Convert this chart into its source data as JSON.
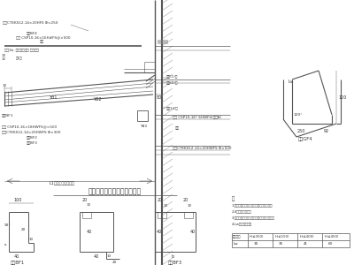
{
  "bg_color": "#f0f0f0",
  "lc": "#555555",
  "tc": "#333333",
  "title": "雨蕨法水收边板施工节点详图",
  "notes": [
    "1.屏蔻流水升皮居吧保护层应符合设计要求",
    "2.0圈表示内径大小",
    "3.此节点仅供参考，具体项目需根据实际设计",
    "4.Lw参考表格选取"
  ]
}
